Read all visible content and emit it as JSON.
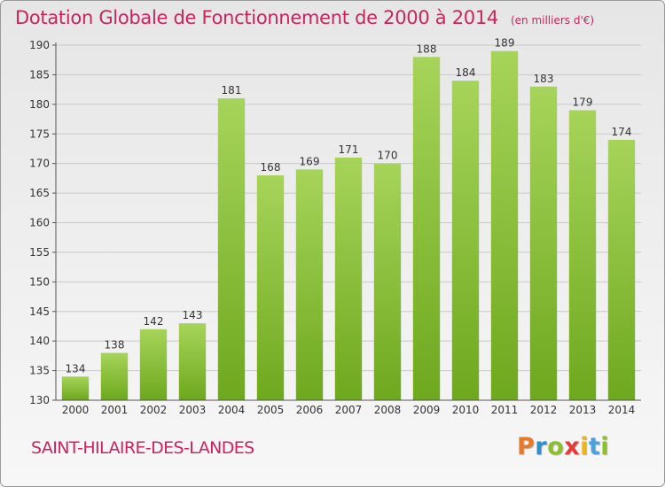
{
  "title": "Dotation Globale de Fonctionnement de 2000 à 2014",
  "unit": "(en milliers d'€)",
  "commune": "SAINT-HILAIRE-DES-LANDES",
  "logo": "Proxiti",
  "colors": {
    "accent": "#c8245e",
    "bar_light": "#a6d45a",
    "bar_dark": "#6ea81e"
  },
  "chart_data": {
    "type": "bar",
    "title": "Dotation Globale de Fonctionnement de 2000 à 2014",
    "subtitle": "(en milliers d'€)",
    "xlabel": "",
    "ylabel": "",
    "categories": [
      "2000",
      "2001",
      "2002",
      "2003",
      "2004",
      "2005",
      "2006",
      "2007",
      "2008",
      "2009",
      "2010",
      "2011",
      "2012",
      "2013",
      "2014"
    ],
    "values": [
      134,
      138,
      142,
      143,
      181,
      168,
      169,
      171,
      170,
      188,
      184,
      189,
      183,
      179,
      174
    ],
    "ylim": [
      130,
      190
    ],
    "yticks": [
      130,
      135,
      140,
      145,
      150,
      155,
      160,
      165,
      170,
      175,
      180,
      185,
      190
    ],
    "grid": true,
    "legend": "none"
  }
}
